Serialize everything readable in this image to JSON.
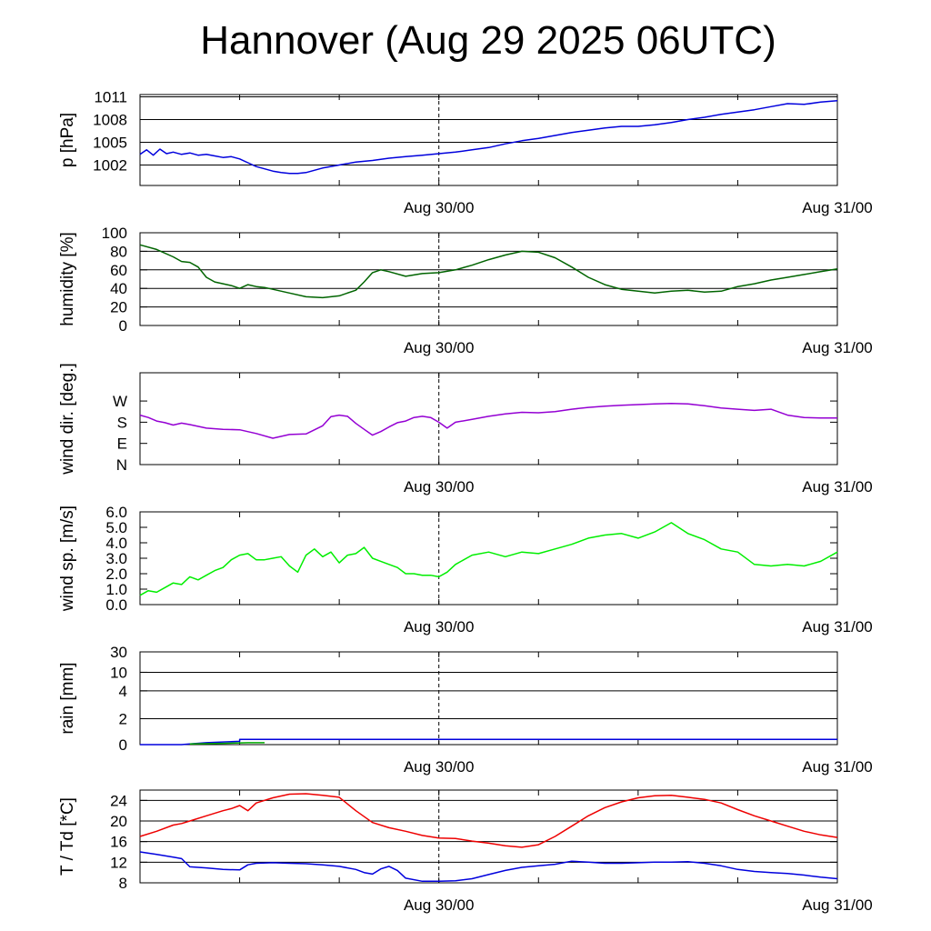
{
  "title": "Hannover (Aug 29 2025 06UTC)",
  "chart_data": [
    {
      "type": "line",
      "ylabel": "p [hPa]",
      "ylim": [
        999.3,
        1011.3
      ],
      "yticks": [
        1002,
        1005,
        1008,
        1011
      ],
      "ytick_labels": [
        "1002",
        "1005",
        "1008",
        "1011"
      ],
      "grid": "horizontal at y ticks",
      "xlim_hours": [
        -18,
        24
      ],
      "x_tick_labels": [
        {
          "label": "Aug 30/00",
          "hours": 0
        },
        {
          "label": "Aug 31/00",
          "hours": 24
        }
      ],
      "series": [
        {
          "color": "#0000dd",
          "x": [
            -18,
            -17.6,
            -17.2,
            -16.8,
            -16.4,
            -16,
            -15.5,
            -15,
            -14.5,
            -14,
            -13.5,
            -13,
            -12.5,
            -12,
            -11.5,
            -11,
            -10.5,
            -10,
            -9.5,
            -9,
            -8.5,
            -8,
            -7,
            -6,
            -5,
            -4,
            -3,
            -2,
            -1,
            0,
            1,
            2,
            3,
            4,
            5,
            6,
            7,
            8,
            9,
            10,
            11,
            12,
            13,
            14,
            15,
            16,
            17,
            18,
            19,
            20,
            21,
            22,
            23,
            24
          ],
          "y": [
            1003.4,
            1004.0,
            1003.3,
            1004.1,
            1003.5,
            1003.7,
            1003.4,
            1003.6,
            1003.3,
            1003.4,
            1003.2,
            1003.0,
            1003.1,
            1002.8,
            1002.3,
            1001.8,
            1001.5,
            1001.2,
            1001.0,
            1000.9,
            1000.9,
            1001.0,
            1001.6,
            1002.0,
            1002.4,
            1002.6,
            1002.9,
            1003.1,
            1003.3,
            1003.5,
            1003.7,
            1004.0,
            1004.3,
            1004.8,
            1005.2,
            1005.5,
            1005.9,
            1006.3,
            1006.6,
            1006.9,
            1007.1,
            1007.1,
            1007.3,
            1007.6,
            1008.0,
            1008.3,
            1008.7,
            1009.0,
            1009.3,
            1009.7,
            1010.1,
            1010.0,
            1010.3,
            1010.5
          ]
        }
      ]
    },
    {
      "type": "line",
      "ylabel": "humidity [%]",
      "ylim": [
        0,
        100
      ],
      "yticks": [
        0,
        20,
        40,
        60,
        80,
        100
      ],
      "ytick_labels": [
        "0",
        "20",
        "40",
        "60",
        "80",
        "100"
      ],
      "grid": "horizontal at y ticks",
      "xlim_hours": [
        -18,
        24
      ],
      "x_tick_labels": [
        {
          "label": "Aug 30/00",
          "hours": 0
        },
        {
          "label": "Aug 31/00",
          "hours": 24
        }
      ],
      "series": [
        {
          "color": "#006400",
          "x": [
            -18,
            -17,
            -16,
            -15.5,
            -15,
            -14.5,
            -14,
            -13.5,
            -13,
            -12.5,
            -12,
            -11.5,
            -11,
            -10.5,
            -10,
            -9,
            -8,
            -7,
            -6,
            -5,
            -4.5,
            -4,
            -3.5,
            -3,
            -2,
            -1,
            0,
            1,
            2,
            3,
            4,
            5,
            6,
            7,
            8,
            9,
            10,
            11,
            12,
            13,
            14,
            15,
            16,
            17,
            18,
            19,
            20,
            21,
            22,
            23,
            24
          ],
          "y": [
            87,
            82,
            74,
            69,
            68,
            63,
            52,
            47,
            45,
            43,
            40,
            44,
            42,
            41,
            39,
            35,
            31,
            30,
            32,
            38,
            47,
            57,
            60,
            58,
            53,
            56,
            57,
            60,
            65,
            71,
            76,
            80,
            79,
            73,
            63,
            52,
            44,
            39,
            37,
            35,
            37,
            38,
            36,
            37,
            42,
            45,
            49,
            52,
            55,
            58,
            61
          ]
        }
      ]
    },
    {
      "type": "line",
      "ylabel": "wind dir. [deg.]",
      "ylim": [
        0,
        390
      ],
      "yticks": [
        0,
        90,
        180,
        270
      ],
      "ytick_labels": [
        "N",
        "E",
        "S",
        "W"
      ],
      "grid": "none",
      "xlim_hours": [
        -18,
        24
      ],
      "x_tick_labels": [
        {
          "label": "Aug 30/00",
          "hours": 0
        },
        {
          "label": "Aug 31/00",
          "hours": 24
        }
      ],
      "series": [
        {
          "color": "#9400d3",
          "x": [
            -18,
            -17.5,
            -17,
            -16.5,
            -16,
            -15.5,
            -15,
            -14,
            -13,
            -12,
            -11,
            -10,
            -9,
            -8,
            -7,
            -6.5,
            -6,
            -5.5,
            -5,
            -4.5,
            -4,
            -3.5,
            -3,
            -2.5,
            -2,
            -1.5,
            -1,
            -0.5,
            0,
            0.5,
            1,
            2,
            3,
            4,
            5,
            6,
            7,
            8,
            9,
            10,
            11,
            12,
            13,
            14,
            15,
            16,
            17,
            18,
            19,
            20,
            21,
            22,
            23,
            24
          ],
          "y": [
            210,
            200,
            185,
            178,
            168,
            176,
            170,
            155,
            150,
            148,
            132,
            112,
            128,
            130,
            165,
            204,
            210,
            205,
            175,
            150,
            125,
            140,
            160,
            178,
            185,
            200,
            205,
            200,
            180,
            155,
            180,
            192,
            205,
            215,
            222,
            220,
            225,
            235,
            243,
            248,
            252,
            255,
            258,
            260,
            258,
            250,
            240,
            235,
            230,
            235,
            210,
            200,
            198,
            198
          ]
        }
      ]
    },
    {
      "type": "line",
      "ylabel": "wind sp. [m/s]",
      "ylim": [
        0,
        6
      ],
      "yticks": [
        0,
        1,
        2,
        3,
        4,
        5,
        6
      ],
      "ytick_labels": [
        "0.0",
        "1.0",
        "2.0",
        "3.0",
        "4.0",
        "5.0",
        "6.0"
      ],
      "grid": "none",
      "xlim_hours": [
        -18,
        24
      ],
      "x_tick_labels": [
        {
          "label": "Aug 30/00",
          "hours": 0
        },
        {
          "label": "Aug 31/00",
          "hours": 24
        }
      ],
      "series": [
        {
          "color": "#00ee00",
          "x": [
            -18,
            -17.5,
            -17,
            -16.5,
            -16,
            -15.5,
            -15,
            -14.5,
            -14,
            -13.5,
            -13,
            -12.5,
            -12,
            -11.5,
            -11,
            -10.5,
            -10,
            -9.5,
            -9,
            -8.5,
            -8,
            -7.5,
            -7,
            -6.5,
            -6,
            -5.5,
            -5,
            -4.5,
            -4,
            -3.5,
            -3,
            -2.5,
            -2,
            -1.5,
            -1,
            -0.5,
            0,
            0.5,
            1,
            2,
            3,
            4,
            5,
            6,
            7,
            8,
            9,
            10,
            11,
            12,
            13,
            14,
            15,
            16,
            17,
            18,
            19,
            20,
            21,
            22,
            23,
            24
          ],
          "y": [
            0.6,
            0.9,
            0.8,
            1.1,
            1.4,
            1.3,
            1.8,
            1.6,
            1.9,
            2.2,
            2.4,
            2.9,
            3.2,
            3.3,
            2.9,
            2.9,
            3.0,
            3.1,
            2.5,
            2.1,
            3.2,
            3.6,
            3.1,
            3.4,
            2.7,
            3.2,
            3.3,
            3.7,
            3.0,
            2.8,
            2.6,
            2.4,
            2.0,
            2.0,
            1.9,
            1.9,
            1.8,
            2.1,
            2.6,
            3.2,
            3.4,
            3.1,
            3.4,
            3.3,
            3.6,
            3.9,
            4.3,
            4.5,
            4.6,
            4.3,
            4.7,
            5.3,
            4.6,
            4.2,
            3.6,
            3.4,
            2.6,
            2.5,
            2.6,
            2.5,
            2.8,
            3.4
          ]
        }
      ]
    },
    {
      "type": "line",
      "ylabel": "rain [mm]",
      "ylim": [
        0,
        30
      ],
      "yticks": [
        0,
        2,
        4,
        10,
        30
      ],
      "ytick_labels": [
        "0",
        "2",
        "4",
        "10",
        "30"
      ],
      "grid": "horizontal at y ticks",
      "scale": "nonlinear (compressed upper range)",
      "xlim_hours": [
        -18,
        24
      ],
      "x_tick_labels": [
        {
          "label": "Aug 30/00",
          "hours": 0
        },
        {
          "label": "Aug 31/00",
          "hours": 24
        }
      ],
      "series": [
        {
          "color": "#0000dd",
          "x": [
            -18,
            -15.5,
            -15,
            -14,
            -13,
            -12,
            -12,
            24
          ],
          "y": [
            0,
            0,
            0.05,
            0.15,
            0.2,
            0.25,
            0.4,
            0.4
          ]
        },
        {
          "color": "#00aa00",
          "x": [
            -15,
            -13,
            -11.5,
            -10.5
          ],
          "y": [
            0.05,
            0.1,
            0.15,
            0.15
          ]
        }
      ]
    },
    {
      "type": "line",
      "ylabel": "T / Td [*C]",
      "ylim": [
        8,
        26
      ],
      "yticks": [
        8,
        12,
        16,
        20,
        24
      ],
      "ytick_labels": [
        "8",
        "12",
        "16",
        "20",
        "24"
      ],
      "grid": "horizontal at y ticks",
      "xlim_hours": [
        -18,
        24
      ],
      "x_tick_labels": [
        {
          "label": "Aug 30/00",
          "hours": 0
        },
        {
          "label": "Aug 31/00",
          "hours": 24
        }
      ],
      "series": [
        {
          "color": "#ee0000",
          "x": [
            -18,
            -17,
            -16,
            -15.5,
            -15,
            -14,
            -13,
            -12.5,
            -12,
            -11.5,
            -11,
            -10,
            -9,
            -8,
            -7,
            -6,
            -5,
            -4,
            -3,
            -2,
            -1,
            0,
            1,
            2,
            3,
            4,
            5,
            6,
            7,
            8,
            9,
            10,
            11,
            12,
            13,
            14,
            15,
            16,
            17,
            18,
            19,
            20,
            21,
            22,
            23,
            24
          ],
          "y": [
            17,
            18,
            19.2,
            19.5,
            20,
            21,
            22,
            22.4,
            23,
            22,
            23.5,
            24.5,
            25.2,
            25.3,
            25.0,
            24.6,
            22.0,
            19.7,
            18.7,
            18.0,
            17.2,
            16.7,
            16.6,
            16.1,
            15.7,
            15.2,
            14.9,
            15.4,
            17.0,
            19.0,
            21.0,
            22.6,
            23.7,
            24.5,
            24.9,
            25.0,
            24.6,
            24.2,
            23.5,
            22.2,
            21.0,
            20.0,
            19.0,
            18.0,
            17.3,
            16.8
          ]
        },
        {
          "color": "#0000dd",
          "x": [
            -18,
            -17,
            -16,
            -15.5,
            -15,
            -14.5,
            -14,
            -13,
            -12,
            -11.5,
            -11,
            -10,
            -9,
            -8,
            -7,
            -6,
            -5,
            -4.5,
            -4,
            -3.5,
            -3,
            -2.5,
            -2,
            -1,
            0,
            1,
            2,
            3,
            4,
            5,
            6,
            7,
            8,
            9,
            10,
            11,
            12,
            13,
            14,
            15,
            16,
            17,
            18,
            19,
            20,
            21,
            22,
            23,
            24
          ],
          "y": [
            14.0,
            13.5,
            13.0,
            12.7,
            11.1,
            11.0,
            10.9,
            10.6,
            10.5,
            11.5,
            11.8,
            11.9,
            11.8,
            11.7,
            11.5,
            11.2,
            10.6,
            10.0,
            9.7,
            10.7,
            11.2,
            10.4,
            8.9,
            8.3,
            8.3,
            8.4,
            8.8,
            9.6,
            10.4,
            11.0,
            11.3,
            11.6,
            12.2,
            12.0,
            11.8,
            11.8,
            11.9,
            12.0,
            12.0,
            12.1,
            11.8,
            11.3,
            10.6,
            10.2,
            10.0,
            9.8,
            9.5,
            9.1,
            8.8
          ]
        }
      ]
    }
  ]
}
